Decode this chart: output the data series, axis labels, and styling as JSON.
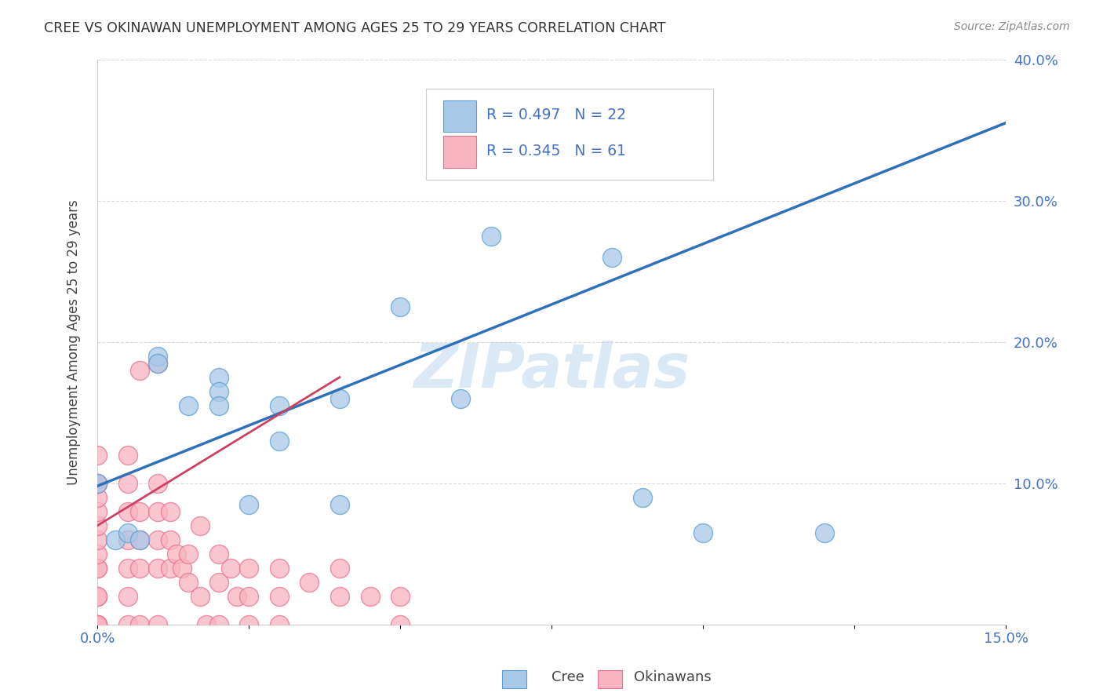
{
  "title": "CREE VS OKINAWAN UNEMPLOYMENT AMONG AGES 25 TO 29 YEARS CORRELATION CHART",
  "source": "Source: ZipAtlas.com",
  "ylabel": "Unemployment Among Ages 25 to 29 years",
  "xlim": [
    0.0,
    0.15
  ],
  "ylim": [
    0.0,
    0.4
  ],
  "xticks": [
    0.0,
    0.025,
    0.05,
    0.075,
    0.1,
    0.125,
    0.15
  ],
  "yticks": [
    0.0,
    0.1,
    0.2,
    0.3,
    0.4
  ],
  "cree_color": "#a8c8e8",
  "cree_edge": "#5a9fd4",
  "okinawan_color": "#f8b4c0",
  "okinawan_edge": "#e87090",
  "cree_R": 0.497,
  "cree_N": 22,
  "okinawan_R": 0.345,
  "okinawan_N": 61,
  "watermark": "ZIPatlas",
  "cree_scatter_x": [
    0.0,
    0.003,
    0.005,
    0.007,
    0.01,
    0.01,
    0.015,
    0.02,
    0.02,
    0.02,
    0.025,
    0.03,
    0.03,
    0.04,
    0.04,
    0.05,
    0.06,
    0.065,
    0.085,
    0.09,
    0.1,
    0.12
  ],
  "cree_scatter_y": [
    0.1,
    0.06,
    0.065,
    0.06,
    0.19,
    0.185,
    0.155,
    0.175,
    0.165,
    0.155,
    0.085,
    0.155,
    0.13,
    0.16,
    0.085,
    0.225,
    0.16,
    0.275,
    0.26,
    0.09,
    0.065,
    0.065
  ],
  "okinawan_scatter_x": [
    0.0,
    0.0,
    0.0,
    0.0,
    0.0,
    0.0,
    0.0,
    0.0,
    0.0,
    0.0,
    0.0,
    0.0,
    0.0,
    0.0,
    0.0,
    0.0,
    0.005,
    0.005,
    0.005,
    0.005,
    0.005,
    0.005,
    0.005,
    0.007,
    0.007,
    0.007,
    0.007,
    0.007,
    0.01,
    0.01,
    0.01,
    0.01,
    0.01,
    0.01,
    0.012,
    0.012,
    0.012,
    0.013,
    0.014,
    0.015,
    0.015,
    0.017,
    0.017,
    0.018,
    0.02,
    0.02,
    0.02,
    0.022,
    0.023,
    0.025,
    0.025,
    0.025,
    0.03,
    0.03,
    0.03,
    0.035,
    0.04,
    0.04,
    0.045,
    0.05,
    0.05
  ],
  "okinawan_scatter_y": [
    0.0,
    0.0,
    0.0,
    0.0,
    0.02,
    0.02,
    0.04,
    0.04,
    0.05,
    0.06,
    0.07,
    0.08,
    0.09,
    0.1,
    0.1,
    0.12,
    0.0,
    0.02,
    0.04,
    0.06,
    0.08,
    0.1,
    0.12,
    0.0,
    0.04,
    0.06,
    0.08,
    0.18,
    0.0,
    0.04,
    0.06,
    0.08,
    0.1,
    0.185,
    0.04,
    0.06,
    0.08,
    0.05,
    0.04,
    0.03,
    0.05,
    0.02,
    0.07,
    0.0,
    0.0,
    0.03,
    0.05,
    0.04,
    0.02,
    0.0,
    0.02,
    0.04,
    0.0,
    0.02,
    0.04,
    0.03,
    0.02,
    0.04,
    0.02,
    0.0,
    0.02
  ],
  "cree_trend": [
    0.0,
    0.15,
    0.098,
    0.355
  ],
  "okinawan_trend": [
    0.0,
    0.04,
    0.07,
    0.175
  ],
  "background_color": "#ffffff",
  "grid_color": "#cccccc",
  "axis_label_color": "#4472c4",
  "title_color": "#333333",
  "trend_blue": "#3070b8",
  "trend_pink": "#d04060"
}
